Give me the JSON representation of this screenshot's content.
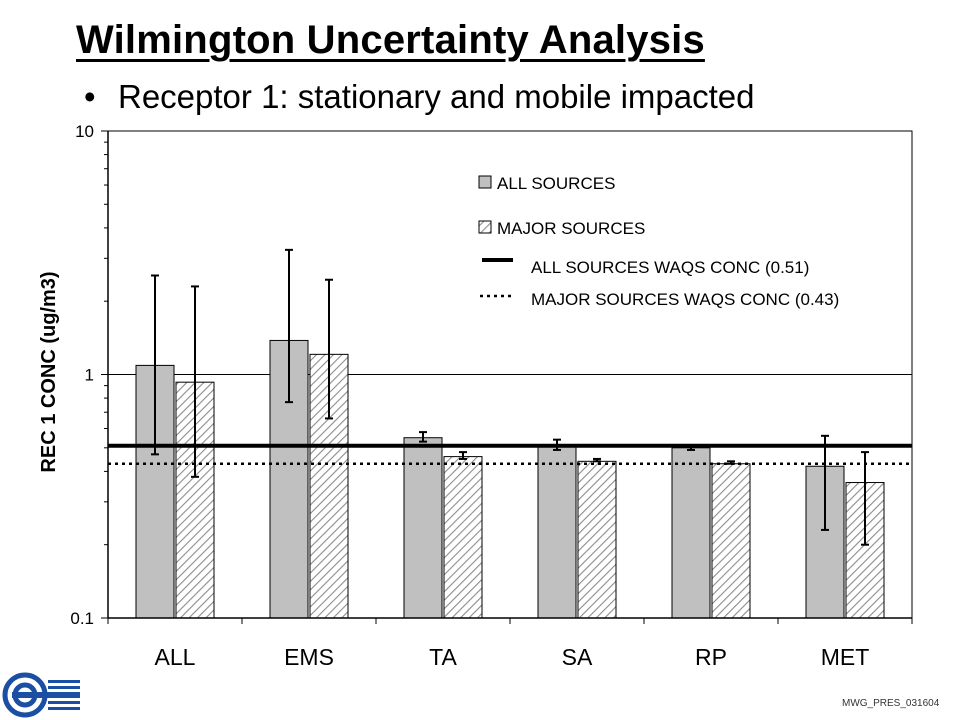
{
  "slide": {
    "title": "Wilmington Uncertainty Analysis",
    "bullet": "Receptor 1:  stationary and mobile impacted",
    "footer_code": "MWG_PRES_031604"
  },
  "icons": {
    "logo": "organization-logo-icon"
  },
  "colors": {
    "all_sources_fill": "#c0c0c0",
    "major_sources_hatch": "#8c8c8c",
    "axis": "#000000"
  },
  "chart_data": {
    "type": "bar",
    "title": "",
    "ylabel": "REC 1 CONC (ug/m3)",
    "xlabel": "",
    "yscale": "log",
    "ylim": [
      0.1,
      10
    ],
    "yticks": [
      {
        "value": 0.1,
        "label": "0.1"
      },
      {
        "value": 1,
        "label": "1"
      },
      {
        "value": 10,
        "label": "10"
      }
    ],
    "grid": "horizontal at decades",
    "categories": [
      "ALL",
      "EMS",
      "TA",
      "SA",
      "RP",
      "MET"
    ],
    "series": [
      {
        "name": "ALL SOURCES",
        "style": "solid",
        "values": [
          1.09,
          1.38,
          0.55,
          0.51,
          0.5,
          0.42
        ],
        "error_low": [
          0.47,
          0.77,
          0.53,
          0.49,
          0.49,
          0.23
        ],
        "error_high": [
          2.55,
          3.25,
          0.58,
          0.54,
          0.51,
          0.56
        ]
      },
      {
        "name": "MAJOR SOURCES",
        "style": "hatched",
        "values": [
          0.93,
          1.21,
          0.46,
          0.44,
          0.43,
          0.36
        ],
        "error_low": [
          0.38,
          0.66,
          0.45,
          0.44,
          0.43,
          0.2
        ],
        "error_high": [
          2.3,
          2.45,
          0.48,
          0.45,
          0.44,
          0.48
        ]
      }
    ],
    "reference_lines": [
      {
        "name": "ALL SOURCES WAQS CONC (0.51)",
        "value": 0.51,
        "style": "solid"
      },
      {
        "name": "MAJOR SOURCES WAQS CONC (0.43)",
        "value": 0.43,
        "style": "dotted"
      }
    ],
    "legend": {
      "position": "top-right"
    }
  }
}
